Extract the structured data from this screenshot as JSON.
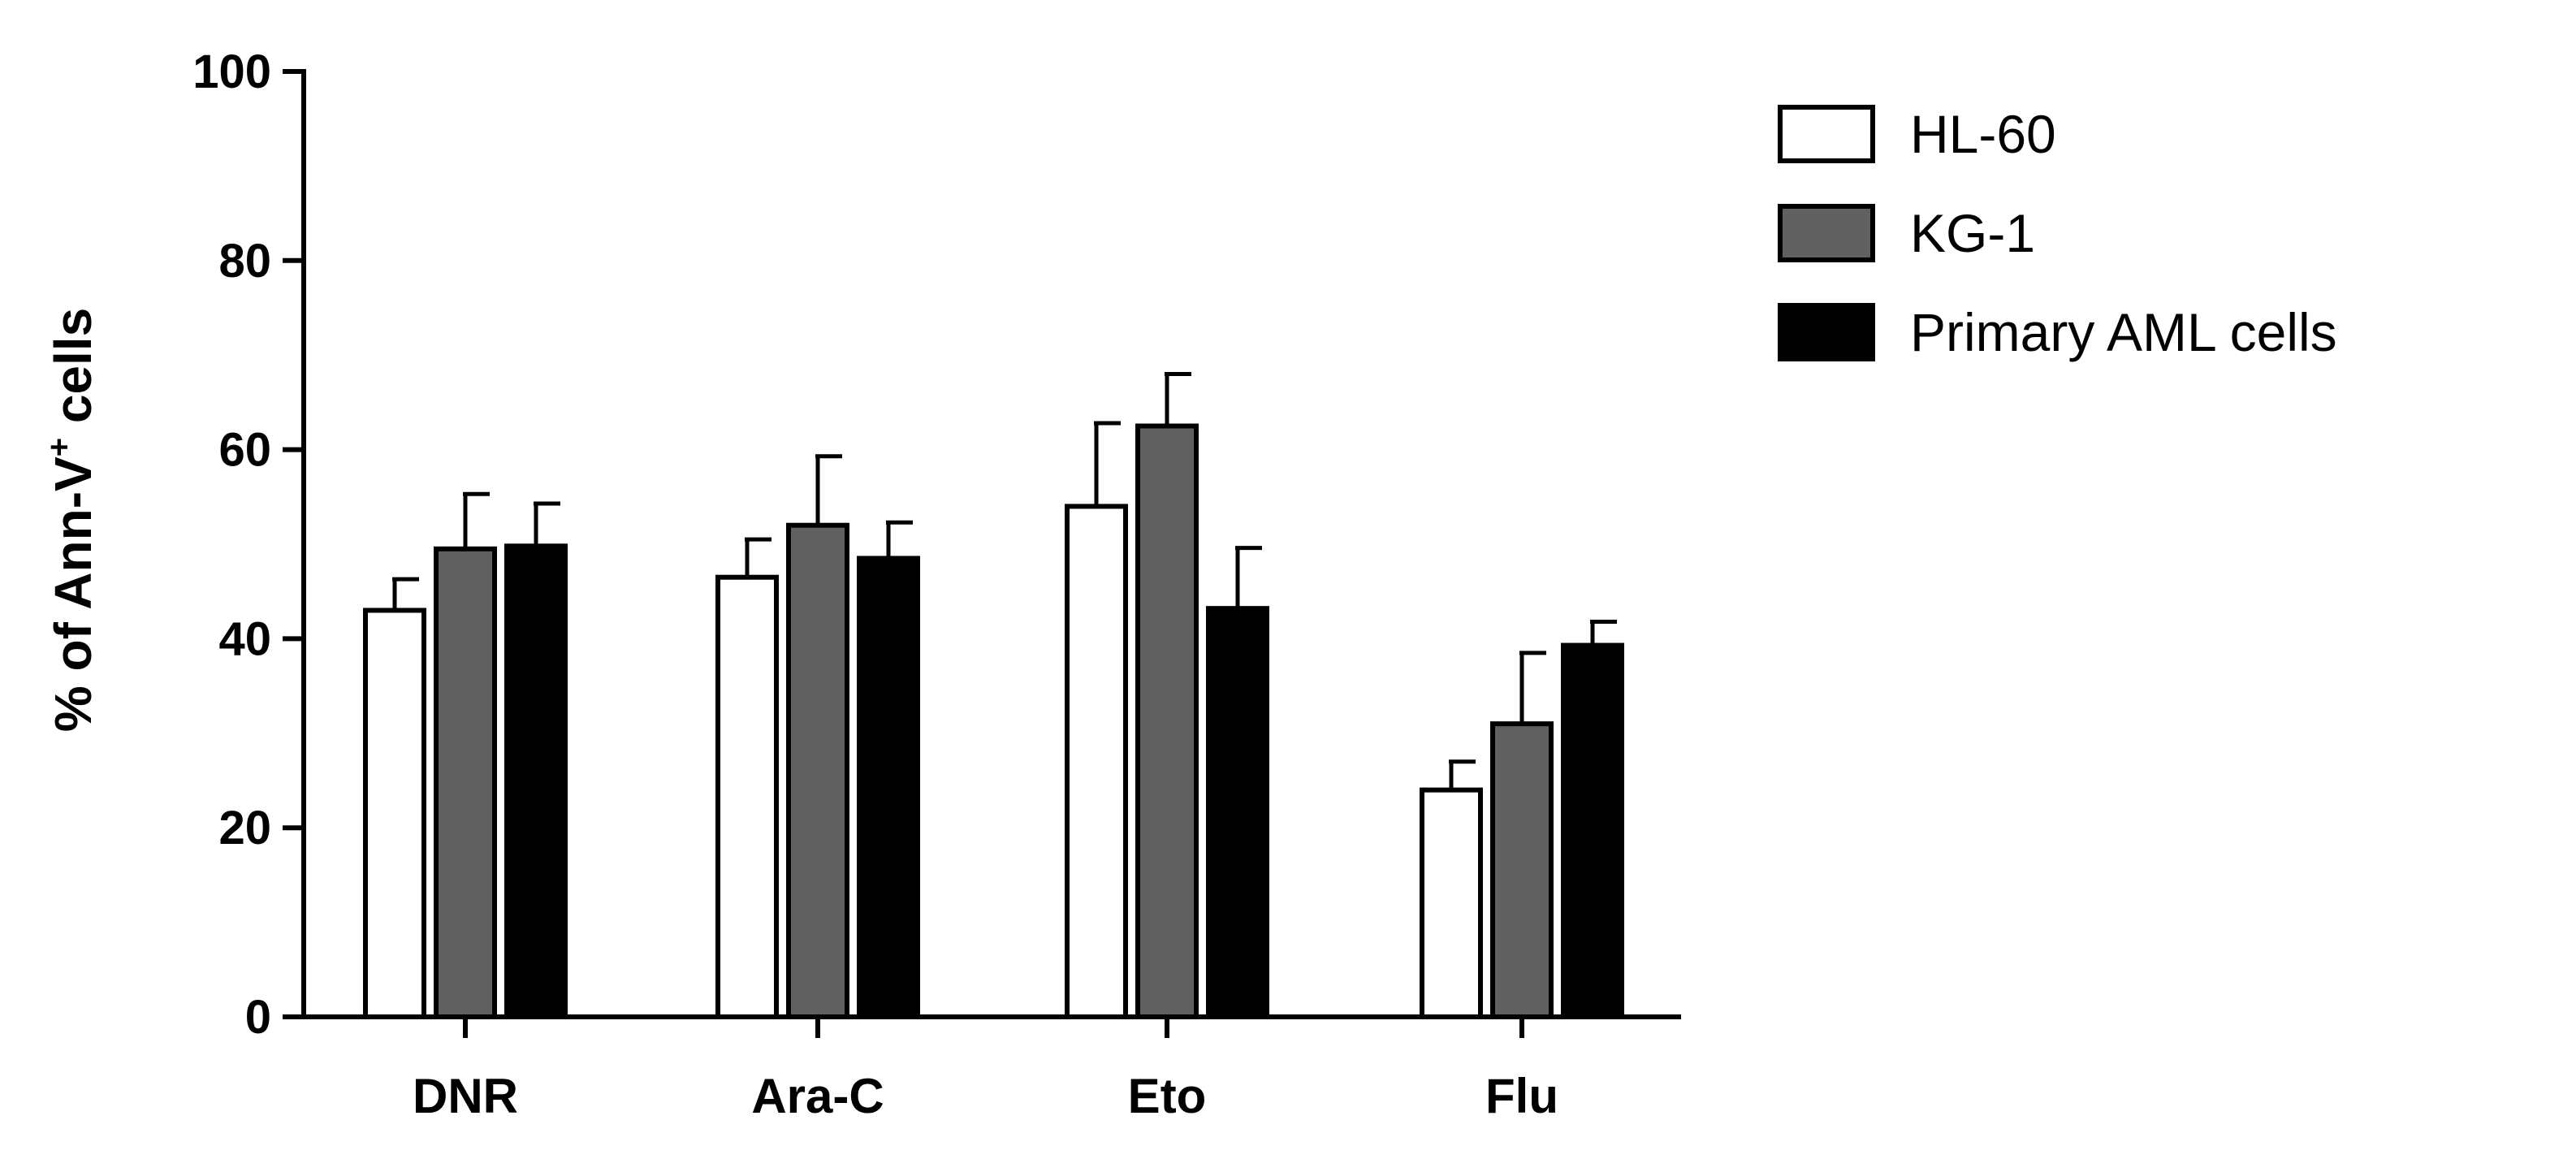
{
  "chart_data": {
    "type": "bar",
    "title": "",
    "xlabel": "",
    "ylabel": {
      "main": "% of Ann-V",
      "superscript": "+",
      "tail": " cells"
    },
    "ylim": [
      0,
      100
    ],
    "yticks": [
      0,
      20,
      40,
      60,
      80,
      100
    ],
    "categories": [
      "DNR",
      "Ara-C",
      "Eto",
      "Flu"
    ],
    "series": [
      {
        "name": "HL-60",
        "fill": "#ffffff",
        "values": [
          43,
          46.5,
          54,
          24
        ],
        "errors": [
          3.3,
          4,
          8.8,
          3
        ]
      },
      {
        "name": "KG-1",
        "fill": "#606060",
        "values": [
          49.5,
          52,
          62.5,
          31
        ],
        "errors": [
          5.8,
          7.3,
          5.5,
          7.5
        ]
      },
      {
        "name": "Primary AML cells",
        "fill": "#000000",
        "values": [
          49.8,
          48.5,
          43.2,
          39.3
        ],
        "errors": [
          4.5,
          3.8,
          6.4,
          2.5
        ]
      }
    ],
    "legend_position": "top-right",
    "grid": false
  }
}
